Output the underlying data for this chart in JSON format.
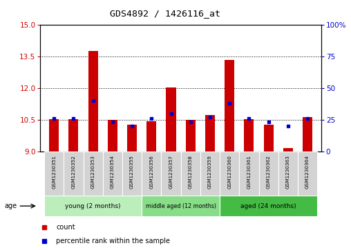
{
  "title": "GDS4892 / 1426116_at",
  "samples": [
    "GSM1230351",
    "GSM1230352",
    "GSM1230353",
    "GSM1230354",
    "GSM1230355",
    "GSM1230356",
    "GSM1230357",
    "GSM1230358",
    "GSM1230359",
    "GSM1230360",
    "GSM1230361",
    "GSM1230362",
    "GSM1230363",
    "GSM1230364"
  ],
  "counts": [
    10.52,
    10.52,
    13.75,
    10.5,
    10.25,
    10.42,
    12.02,
    10.5,
    10.72,
    13.35,
    10.52,
    10.25,
    9.15,
    10.62
  ],
  "percentile_ranks": [
    26,
    26,
    40,
    23,
    20,
    26,
    30,
    23,
    27,
    38,
    26,
    23,
    20,
    26
  ],
  "ylim_left": [
    9,
    15
  ],
  "ylim_right": [
    0,
    100
  ],
  "yticks_left": [
    9,
    10.5,
    12,
    13.5,
    15
  ],
  "yticks_right": [
    0,
    25,
    50,
    75,
    100
  ],
  "bar_color": "#cc0000",
  "dot_color": "#0000cc",
  "groups": [
    {
      "label": "young (2 months)",
      "indices": [
        0,
        1,
        2,
        3,
        4
      ],
      "colors": "#aaddaa"
    },
    {
      "label": "middle aged (12 months)",
      "indices": [
        5,
        6,
        7,
        8
      ],
      "colors": "#88cc88"
    },
    {
      "label": "aged (24 months)",
      "indices": [
        9,
        10,
        11,
        12,
        13
      ],
      "colors": "#55bb55"
    }
  ],
  "age_label": "age",
  "legend_count_label": "count",
  "legend_pct_label": "percentile rank within the sample",
  "bar_bottom": 9,
  "bar_width": 0.5,
  "tick_color_left": "#cc0000",
  "tick_color_right": "#0000cc",
  "group_colors": [
    "#bbeebb",
    "#88dd88",
    "#44bb44"
  ]
}
